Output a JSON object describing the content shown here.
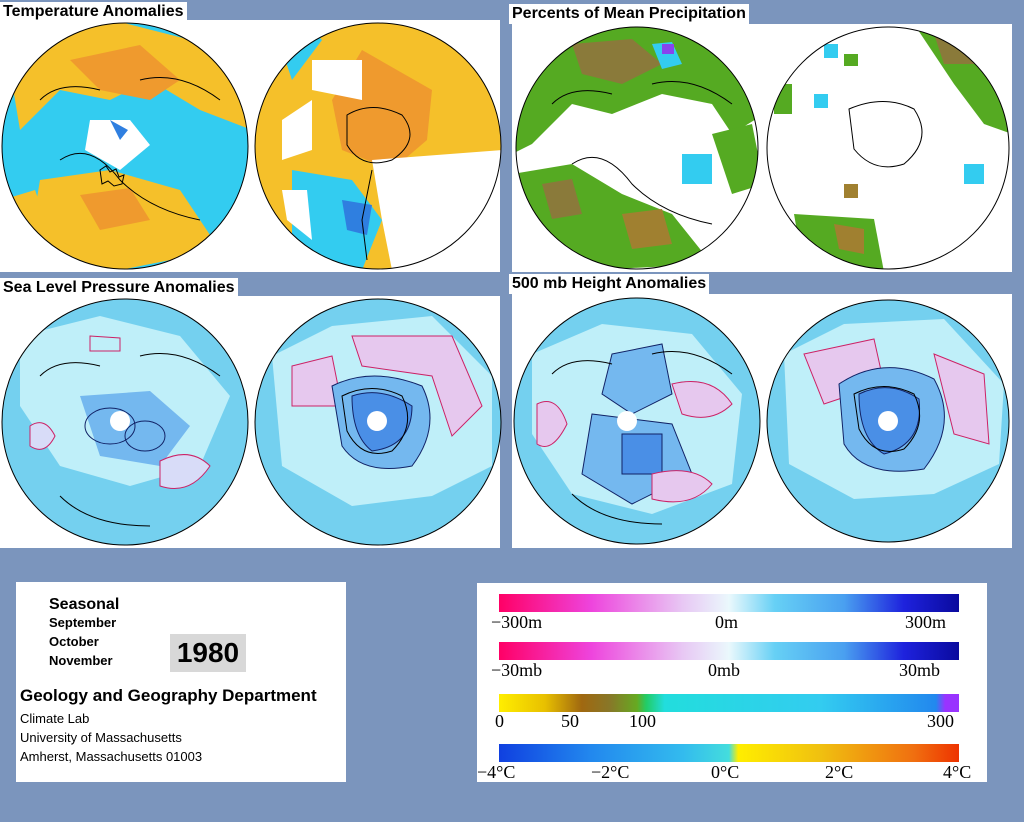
{
  "panels": {
    "temperature": {
      "title": "Temperature Anomalies"
    },
    "precipitation": {
      "title": "Percents of Mean Precipitation"
    },
    "pressure": {
      "title": "Sea Level Pressure Anomalies"
    },
    "height": {
      "title": "500 mb Height Anomalies"
    }
  },
  "info": {
    "season_label": "Seasonal",
    "months": [
      "September",
      "October",
      "November"
    ],
    "year": "1980",
    "department": "Geology and Geography Department",
    "lab": "Climate Lab",
    "university": "University of Massachusetts",
    "address": "Amherst, Massachusetts 01003"
  },
  "legends": {
    "height_scale": {
      "labels": [
        "−300m",
        "0m",
        "300m"
      ]
    },
    "pressure_scale": {
      "labels": [
        "−30mb",
        "0mb",
        "30mb"
      ]
    },
    "precip_scale": {
      "labels": [
        "0",
        "50",
        "100",
        "300"
      ]
    },
    "temp_scale": {
      "labels": [
        "−4°C",
        "−2°C",
        "0°C",
        "2°C",
        "4°C"
      ]
    }
  },
  "colors": {
    "background": "#7b95bd",
    "warm": "#f5c02a",
    "cool": "#33ccf0",
    "pale_blue": "#bfeff9",
    "mid_blue": "#74b8ef",
    "deep_blue": "#2f7fe0",
    "pink_contour": "#cc2266",
    "dark_contour": "#112266"
  }
}
